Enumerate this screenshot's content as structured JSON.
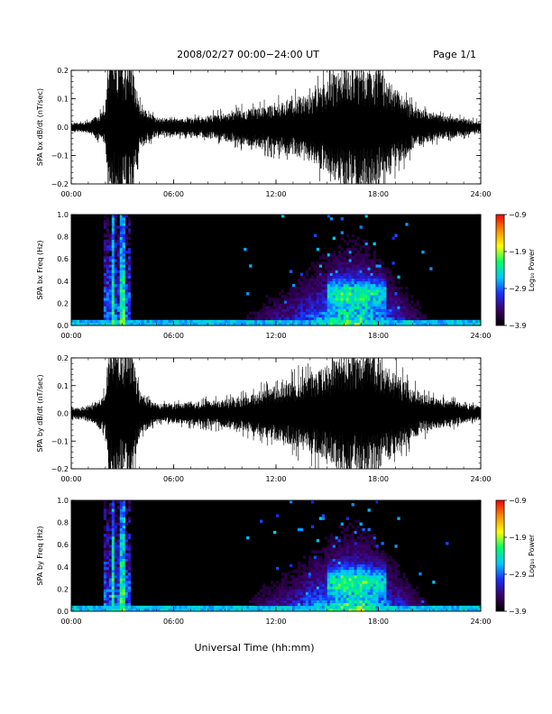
{
  "header": {
    "title": "2008/02/27  00:00−24:00 UT",
    "page": "Page 1/1"
  },
  "footer": {
    "xlabel": "Universal Time (hh:mm)"
  },
  "colorscale": {
    "colors": [
      "#000000",
      "#3b0066",
      "#1a2dff",
      "#00c8ff",
      "#00ff64",
      "#ffff00",
      "#ff8c00",
      "#ff0000"
    ]
  },
  "chart_data": [
    {
      "type": "line",
      "name": "panel-bx-time-series",
      "ylabel": "SPA bx dB/dt (nT/sec)",
      "xlim": [
        0,
        24
      ],
      "ylim": [
        -0.2,
        0.2
      ],
      "xticks": [
        "00:00",
        "06:00",
        "12:00",
        "18:00",
        "24:00"
      ],
      "yticks": [
        "0.2",
        "0.1",
        "0.0",
        "−0.1",
        "−0.2"
      ],
      "envelope": {
        "hours": [
          0,
          1,
          2,
          2.2,
          3.5,
          4,
          5,
          6,
          7,
          8,
          9,
          10,
          11,
          12,
          13,
          14,
          15,
          16,
          17,
          18,
          19,
          20,
          21,
          22,
          23,
          24
        ],
        "amplitude": [
          0.015,
          0.02,
          0.06,
          0.25,
          0.25,
          0.08,
          0.03,
          0.03,
          0.03,
          0.04,
          0.05,
          0.06,
          0.07,
          0.08,
          0.1,
          0.12,
          0.16,
          0.22,
          0.22,
          0.2,
          0.14,
          0.08,
          0.05,
          0.04,
          0.03,
          0.02
        ]
      }
    },
    {
      "type": "heatmap",
      "name": "panel-bx-spectrogram",
      "ylabel": "SPA bx Freq (Hz)",
      "xlim": [
        0,
        24
      ],
      "ylim": [
        0,
        1.0
      ],
      "xticks": [
        "00:00",
        "06:00",
        "12:00",
        "18:00",
        "24:00"
      ],
      "yticks": [
        "1.0",
        "0.8",
        "0.6",
        "0.4",
        "0.2",
        "0.0"
      ],
      "colorbar": {
        "label": "Log₁₀ Power",
        "ticks": [
          "−0.9",
          "−1.9",
          "−2.9",
          "−3.9"
        ],
        "range": [
          -3.9,
          -0.9
        ]
      }
    },
    {
      "type": "line",
      "name": "panel-by-time-series",
      "ylabel": "SPA by dB/dt (nT/sec)",
      "xlim": [
        0,
        24
      ],
      "ylim": [
        -0.2,
        0.2
      ],
      "xticks": [
        "00:00",
        "06:00",
        "12:00",
        "18:00",
        "24:00"
      ],
      "yticks": [
        "0.2",
        "0.1",
        "0.0",
        "−0.1",
        "−0.2"
      ],
      "envelope": {
        "hours": [
          0,
          1,
          2,
          2.2,
          3.5,
          4,
          5,
          6,
          7,
          8,
          9,
          10,
          11,
          12,
          13,
          14,
          15,
          16,
          17,
          18,
          19,
          20,
          21,
          22,
          23,
          24
        ],
        "amplitude": [
          0.02,
          0.025,
          0.07,
          0.25,
          0.25,
          0.08,
          0.035,
          0.035,
          0.04,
          0.045,
          0.05,
          0.06,
          0.08,
          0.1,
          0.12,
          0.14,
          0.17,
          0.22,
          0.22,
          0.2,
          0.15,
          0.09,
          0.06,
          0.05,
          0.035,
          0.025
        ]
      }
    },
    {
      "type": "heatmap",
      "name": "panel-by-spectrogram",
      "ylabel": "SPA by Freq (Hz)",
      "xlim": [
        0,
        24
      ],
      "ylim": [
        0,
        1.0
      ],
      "xticks": [
        "00:00",
        "06:00",
        "12:00",
        "18:00",
        "24:00"
      ],
      "yticks": [
        "1.0",
        "0.8",
        "0.6",
        "0.4",
        "0.2",
        "0.0"
      ],
      "colorbar": {
        "label": "Log₁₀ Power",
        "ticks": [
          "−0.9",
          "−1.9",
          "−2.9",
          "−3.9"
        ],
        "range": [
          -3.9,
          -0.9
        ]
      }
    }
  ]
}
